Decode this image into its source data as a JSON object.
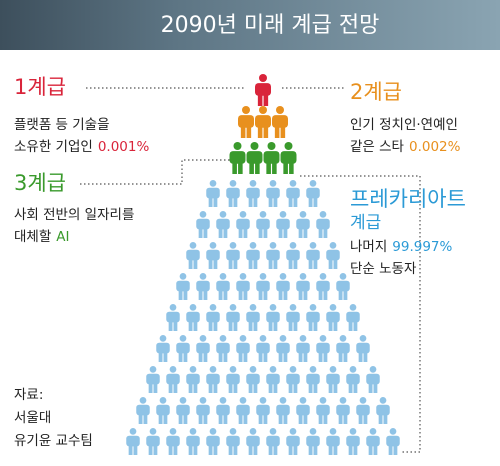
{
  "header": {
    "title": "2090년 미래 계급 전망"
  },
  "classes": [
    {
      "label": [
        "1계급"
      ],
      "lines": [
        {
          "text": "플랫폼 등 기술을"
        },
        {
          "text": "소유한 기업인",
          "highlight": "0.001%"
        }
      ]
    },
    {
      "label": [
        "2계급"
      ],
      "lines": [
        {
          "text": "인기 정치인·연예인"
        },
        {
          "text": "같은 스타",
          "highlight": "0.002%"
        }
      ]
    },
    {
      "label": [
        "3계급"
      ],
      "lines": [
        {
          "text": "사회 전반의 일자리를"
        },
        {
          "text": "대체할",
          "highlight": "AI"
        }
      ]
    },
    {
      "label": [
        "프레카리아트",
        "계급"
      ],
      "lines": [
        {
          "text": "나머지",
          "highlight": "99.997%"
        },
        {
          "text": "단순 노동자"
        }
      ]
    }
  ],
  "source": [
    "자료:",
    "서울대",
    "유기윤 교수팀"
  ]
}
